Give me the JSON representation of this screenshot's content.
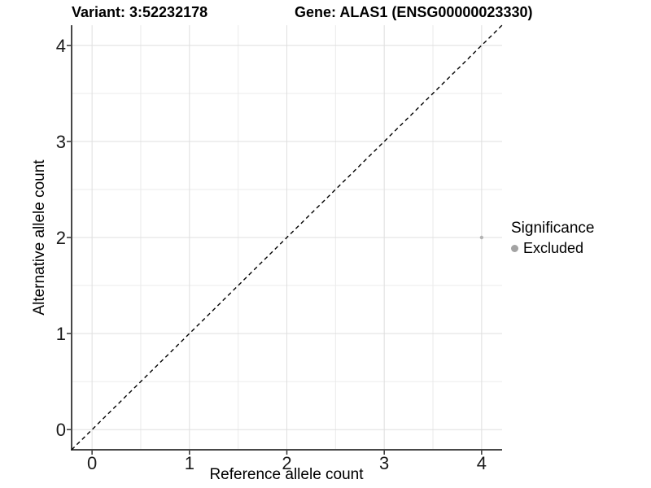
{
  "chart_data": {
    "type": "scatter",
    "title_left": "Variant: 3:52232178",
    "title_right": "Gene: ALAS1 (ENSG00000023330)",
    "xlabel": "Reference allele count",
    "ylabel": "Alternative allele count",
    "xlim": [
      -0.21,
      4.21
    ],
    "ylim": [
      -0.21,
      4.21
    ],
    "xticks": [
      0,
      1,
      2,
      3,
      4
    ],
    "yticks": [
      0,
      1,
      2,
      3,
      4
    ],
    "grid": true,
    "grid_step": 0.5,
    "legend_position": "right",
    "identity_line": {
      "style": "dashed",
      "from": [
        -0.21,
        -0.21
      ],
      "to": [
        4.21,
        4.21
      ],
      "color": "#000000"
    },
    "points": [
      {
        "x": 4,
        "y": 2,
        "significance": "Excluded",
        "color": "#b3b3b3"
      }
    ],
    "legend": {
      "title": "Significance",
      "entries": [
        {
          "label": "Excluded",
          "color": "#a3a3a3"
        }
      ]
    },
    "colors": {
      "background": "#ffffff",
      "grid_major": "#dfdfdf",
      "grid_minor": "#ebebeb",
      "axis_line": "#474747",
      "tick_mark": "#333333",
      "tick_label": "#1a1a1a",
      "point_gray": "#b3b3b3"
    }
  }
}
